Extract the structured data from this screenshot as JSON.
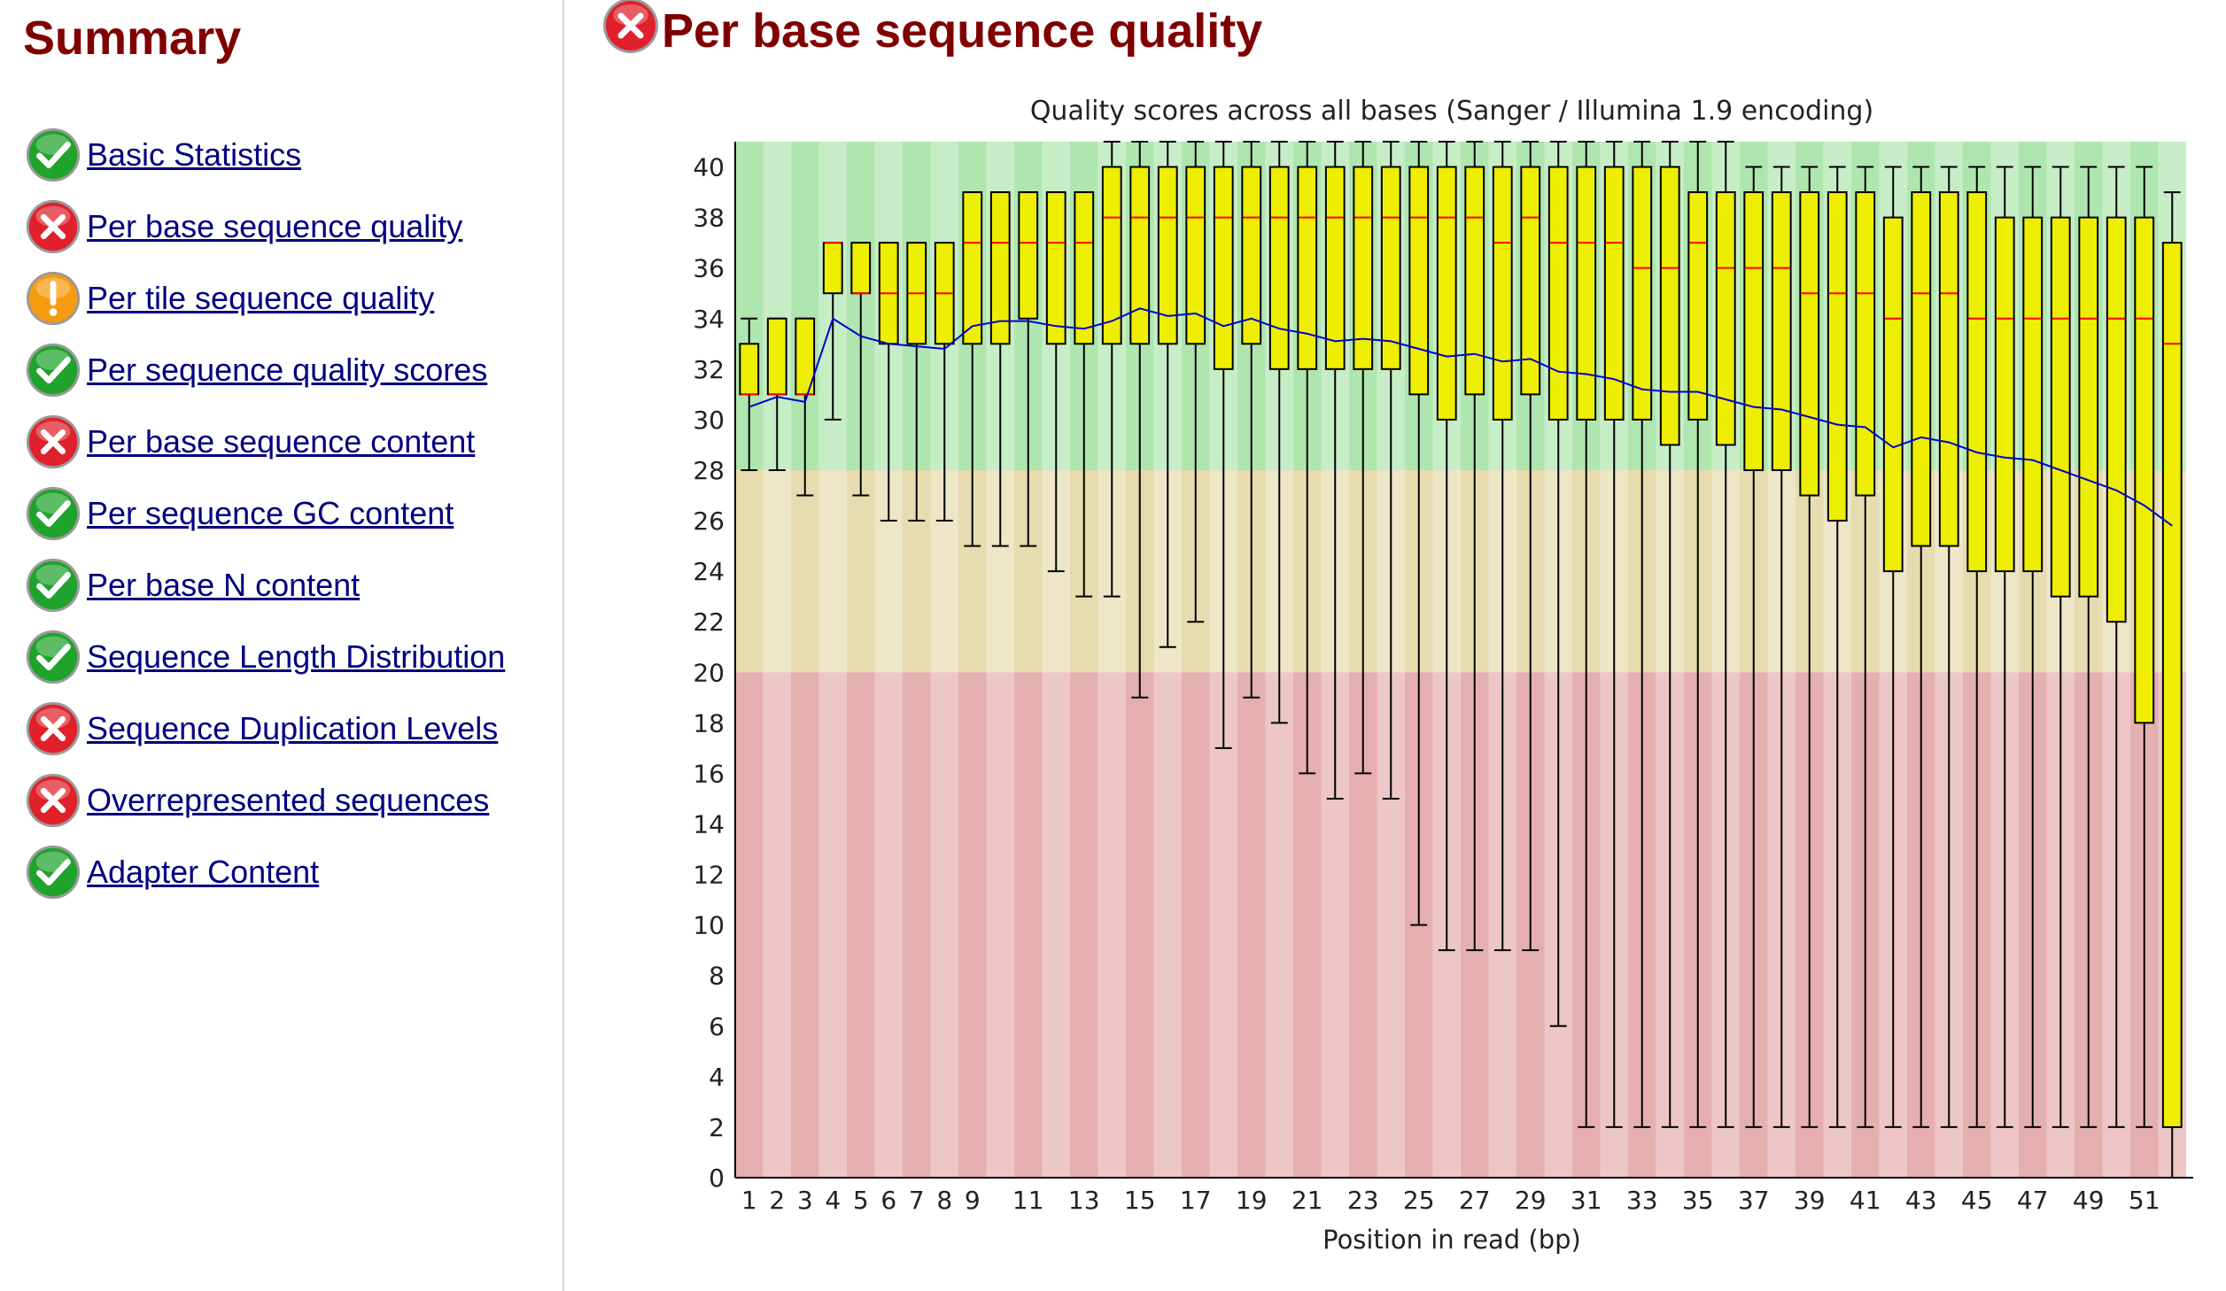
{
  "sidebar": {
    "title": "Summary",
    "items": [
      {
        "label": "Basic Statistics",
        "status": "pass"
      },
      {
        "label": "Per base sequence quality",
        "status": "fail"
      },
      {
        "label": "Per tile sequence quality",
        "status": "warn"
      },
      {
        "label": "Per sequence quality scores",
        "status": "pass"
      },
      {
        "label": "Per base sequence content",
        "status": "fail"
      },
      {
        "label": "Per sequence GC content",
        "status": "pass"
      },
      {
        "label": "Per base N content",
        "status": "pass"
      },
      {
        "label": "Sequence Length Distribution",
        "status": "pass"
      },
      {
        "label": "Sequence Duplication Levels",
        "status": "fail"
      },
      {
        "label": "Overrepresented sequences",
        "status": "fail"
      },
      {
        "label": "Adapter Content",
        "status": "pass"
      }
    ]
  },
  "main": {
    "title": "Per base sequence quality",
    "status": "fail"
  },
  "colors": {
    "heading": "#800000",
    "link": "#000080",
    "pass": "#1fa32c",
    "fail": "#e0202a",
    "warn": "#f59b10",
    "zone_good": "#afe6af",
    "zone_ok": "#e6dcaf",
    "zone_bad": "#e6afaf",
    "box_fill": "#eeee00",
    "median": "#ff0000",
    "mean": "#0000cc"
  },
  "chart_data": {
    "type": "box",
    "title": "Quality scores across all bases (Sanger / Illumina 1.9 encoding)",
    "xlabel": "Position in read (bp)",
    "ylabel": "",
    "ylim": [
      0,
      41
    ],
    "yticks": [
      0,
      2,
      4,
      6,
      8,
      10,
      12,
      14,
      16,
      18,
      20,
      22,
      24,
      26,
      28,
      30,
      32,
      34,
      36,
      38,
      40
    ],
    "xtick_labels": [
      "1",
      "2",
      "3",
      "4",
      "5",
      "6",
      "7",
      "8",
      "9",
      "11",
      "13",
      "15",
      "17",
      "19",
      "21",
      "23",
      "25",
      "27",
      "29",
      "31",
      "33",
      "35",
      "37",
      "39",
      "41",
      "43",
      "45",
      "47",
      "49",
      "51"
    ],
    "zones": [
      {
        "from": 28,
        "to": 41,
        "name": "good"
      },
      {
        "from": 20,
        "to": 28,
        "name": "acceptable"
      },
      {
        "from": 0,
        "to": 20,
        "name": "poor"
      }
    ],
    "positions": [
      {
        "x": 1,
        "q10": 28,
        "q25": 31,
        "median": 31,
        "q75": 33,
        "q90": 34,
        "mean": 30.5
      },
      {
        "x": 2,
        "q10": 28,
        "q25": 31,
        "median": 31,
        "q75": 34,
        "q90": 34,
        "mean": 30.9
      },
      {
        "x": 3,
        "q10": 27,
        "q25": 31,
        "median": 31,
        "q75": 34,
        "q90": 34,
        "mean": 30.7
      },
      {
        "x": 4,
        "q10": 30,
        "q25": 35,
        "median": 37,
        "q75": 37,
        "q90": 37,
        "mean": 34
      },
      {
        "x": 5,
        "q10": 27,
        "q25": 35,
        "median": 35,
        "q75": 37,
        "q90": 37,
        "mean": 33.3
      },
      {
        "x": 6,
        "q10": 26,
        "q25": 33,
        "median": 35,
        "q75": 37,
        "q90": 37,
        "mean": 33
      },
      {
        "x": 7,
        "q10": 26,
        "q25": 33,
        "median": 35,
        "q75": 37,
        "q90": 37,
        "mean": 32.9
      },
      {
        "x": 8,
        "q10": 26,
        "q25": 33,
        "median": 35,
        "q75": 37,
        "q90": 37,
        "mean": 32.8
      },
      {
        "x": 9,
        "q10": 25,
        "q25": 33,
        "median": 37,
        "q75": 39,
        "q90": 39,
        "mean": 33.7
      },
      {
        "x": 10,
        "q10": 25,
        "q25": 33,
        "median": 37,
        "q75": 39,
        "q90": 39,
        "mean": 33.9
      },
      {
        "x": 11,
        "q10": 25,
        "q25": 34,
        "median": 37,
        "q75": 39,
        "q90": 39,
        "mean": 33.9
      },
      {
        "x": 12,
        "q10": 24,
        "q25": 33,
        "median": 37,
        "q75": 39,
        "q90": 39,
        "mean": 33.7
      },
      {
        "x": 13,
        "q10": 23,
        "q25": 33,
        "median": 37,
        "q75": 39,
        "q90": 39,
        "mean": 33.6
      },
      {
        "x": 14,
        "q10": 23,
        "q25": 33,
        "median": 38,
        "q75": 40,
        "q90": 41,
        "mean": 33.9
      },
      {
        "x": 15,
        "q10": 19,
        "q25": 33,
        "median": 38,
        "q75": 40,
        "q90": 41,
        "mean": 34.4
      },
      {
        "x": 16,
        "q10": 21,
        "q25": 33,
        "median": 38,
        "q75": 40,
        "q90": 41,
        "mean": 34.1
      },
      {
        "x": 17,
        "q10": 22,
        "q25": 33,
        "median": 38,
        "q75": 40,
        "q90": 41,
        "mean": 34.2
      },
      {
        "x": 18,
        "q10": 17,
        "q25": 32,
        "median": 38,
        "q75": 40,
        "q90": 41,
        "mean": 33.7
      },
      {
        "x": 19,
        "q10": 19,
        "q25": 33,
        "median": 38,
        "q75": 40,
        "q90": 41,
        "mean": 34
      },
      {
        "x": 20,
        "q10": 18,
        "q25": 32,
        "median": 38,
        "q75": 40,
        "q90": 41,
        "mean": 33.6
      },
      {
        "x": 21,
        "q10": 16,
        "q25": 32,
        "median": 38,
        "q75": 40,
        "q90": 41,
        "mean": 33.4
      },
      {
        "x": 22,
        "q10": 15,
        "q25": 32,
        "median": 38,
        "q75": 40,
        "q90": 41,
        "mean": 33.1
      },
      {
        "x": 23,
        "q10": 16,
        "q25": 32,
        "median": 38,
        "q75": 40,
        "q90": 41,
        "mean": 33.2
      },
      {
        "x": 24,
        "q10": 15,
        "q25": 32,
        "median": 38,
        "q75": 40,
        "q90": 41,
        "mean": 33.1
      },
      {
        "x": 25,
        "q10": 10,
        "q25": 31,
        "median": 38,
        "q75": 40,
        "q90": 41,
        "mean": 32.8
      },
      {
        "x": 26,
        "q10": 9,
        "q25": 30,
        "median": 38,
        "q75": 40,
        "q90": 41,
        "mean": 32.5
      },
      {
        "x": 27,
        "q10": 9,
        "q25": 31,
        "median": 38,
        "q75": 40,
        "q90": 41,
        "mean": 32.6
      },
      {
        "x": 28,
        "q10": 9,
        "q25": 30,
        "median": 37,
        "q75": 40,
        "q90": 41,
        "mean": 32.3
      },
      {
        "x": 29,
        "q10": 9,
        "q25": 31,
        "median": 38,
        "q75": 40,
        "q90": 41,
        "mean": 32.4
      },
      {
        "x": 30,
        "q10": 6,
        "q25": 30,
        "median": 37,
        "q75": 40,
        "q90": 41,
        "mean": 31.9
      },
      {
        "x": 31,
        "q10": 2,
        "q25": 30,
        "median": 37,
        "q75": 40,
        "q90": 41,
        "mean": 31.8
      },
      {
        "x": 32,
        "q10": 2,
        "q25": 30,
        "median": 37,
        "q75": 40,
        "q90": 41,
        "mean": 31.6
      },
      {
        "x": 33,
        "q10": 2,
        "q25": 30,
        "median": 36,
        "q75": 40,
        "q90": 41,
        "mean": 31.2
      },
      {
        "x": 34,
        "q10": 2,
        "q25": 29,
        "median": 36,
        "q75": 40,
        "q90": 41,
        "mean": 31.1
      },
      {
        "x": 35,
        "q10": 2,
        "q25": 30,
        "median": 37,
        "q75": 39,
        "q90": 41,
        "mean": 31.1
      },
      {
        "x": 36,
        "q10": 2,
        "q25": 29,
        "median": 36,
        "q75": 39,
        "q90": 41,
        "mean": 30.8
      },
      {
        "x": 37,
        "q10": 2,
        "q25": 28,
        "median": 36,
        "q75": 39,
        "q90": 40,
        "mean": 30.5
      },
      {
        "x": 38,
        "q10": 2,
        "q25": 28,
        "median": 36,
        "q75": 39,
        "q90": 40,
        "mean": 30.4
      },
      {
        "x": 39,
        "q10": 2,
        "q25": 27,
        "median": 35,
        "q75": 39,
        "q90": 40,
        "mean": 30.1
      },
      {
        "x": 40,
        "q10": 2,
        "q25": 26,
        "median": 35,
        "q75": 39,
        "q90": 40,
        "mean": 29.8
      },
      {
        "x": 41,
        "q10": 2,
        "q25": 27,
        "median": 35,
        "q75": 39,
        "q90": 40,
        "mean": 29.7
      },
      {
        "x": 42,
        "q10": 2,
        "q25": 24,
        "median": 34,
        "q75": 38,
        "q90": 40,
        "mean": 28.9
      },
      {
        "x": 43,
        "q10": 2,
        "q25": 25,
        "median": 35,
        "q75": 39,
        "q90": 40,
        "mean": 29.3
      },
      {
        "x": 44,
        "q10": 2,
        "q25": 25,
        "median": 35,
        "q75": 39,
        "q90": 40,
        "mean": 29.1
      },
      {
        "x": 45,
        "q10": 2,
        "q25": 24,
        "median": 34,
        "q75": 39,
        "q90": 40,
        "mean": 28.7
      },
      {
        "x": 46,
        "q10": 2,
        "q25": 24,
        "median": 34,
        "q75": 38,
        "q90": 40,
        "mean": 28.5
      },
      {
        "x": 47,
        "q10": 2,
        "q25": 24,
        "median": 34,
        "q75": 38,
        "q90": 40,
        "mean": 28.4
      },
      {
        "x": 48,
        "q10": 2,
        "q25": 23,
        "median": 34,
        "q75": 38,
        "q90": 40,
        "mean": 28
      },
      {
        "x": 49,
        "q10": 2,
        "q25": 23,
        "median": 34,
        "q75": 38,
        "q90": 40,
        "mean": 27.6
      },
      {
        "x": 50,
        "q10": 2,
        "q25": 22,
        "median": 34,
        "q75": 38,
        "q90": 40,
        "mean": 27.2
      },
      {
        "x": 51,
        "q10": 2,
        "q25": 18,
        "median": 34,
        "q75": 38,
        "q90": 40,
        "mean": 26.6
      },
      {
        "x": 52,
        "q10": 0,
        "q25": 2,
        "median": 33,
        "q75": 37,
        "q90": 39,
        "mean": 25.8
      }
    ]
  }
}
